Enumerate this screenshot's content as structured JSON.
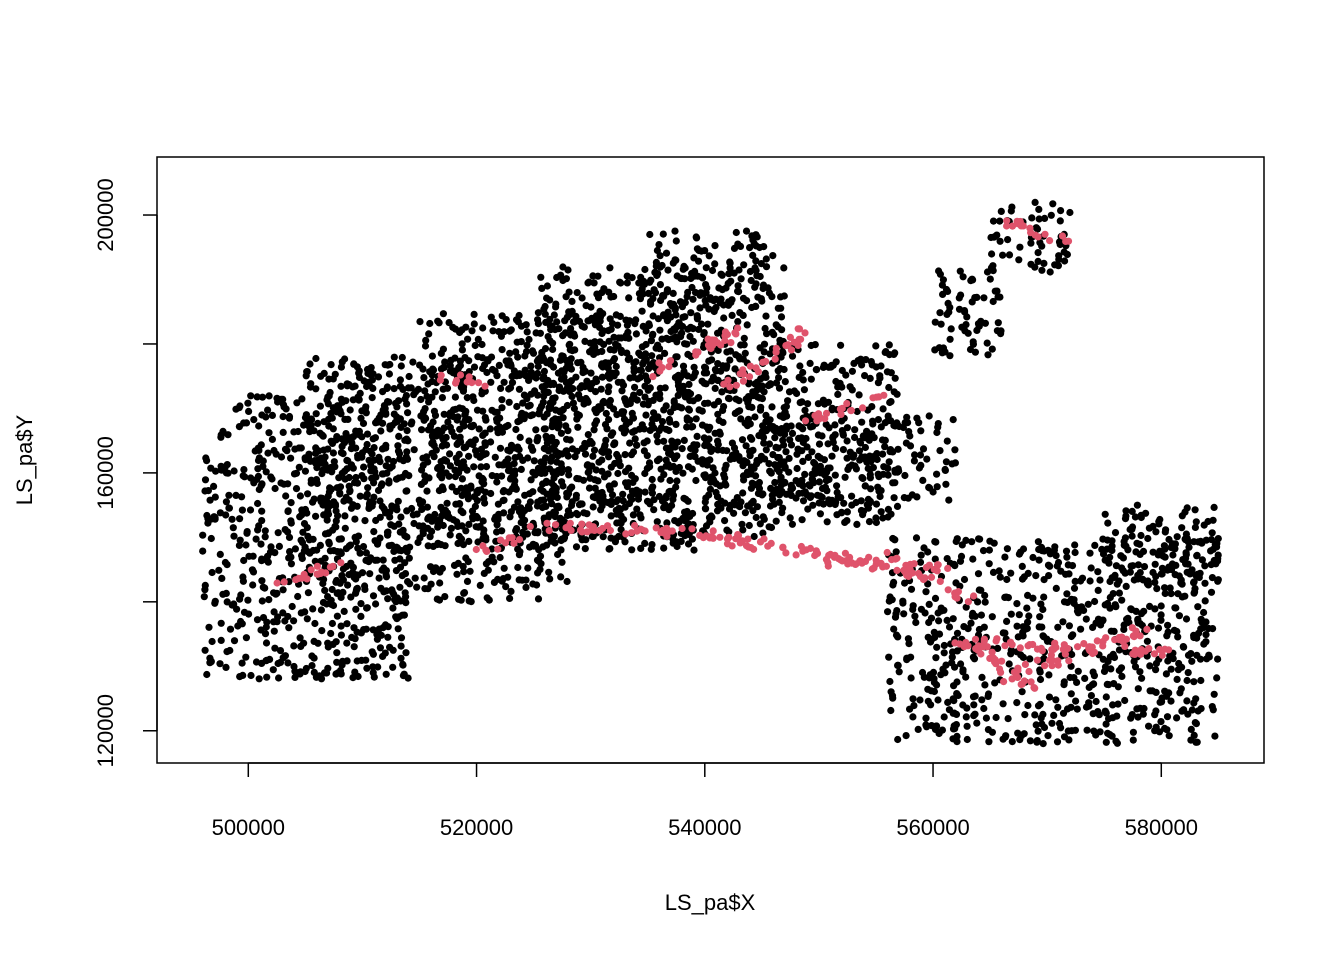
{
  "chart_data": {
    "type": "scatter",
    "title": "",
    "xlabel": "LS_pa$X",
    "ylabel": "LS_pa$Y",
    "xlim": [
      492000,
      589000
    ],
    "ylim": [
      115000,
      209000
    ],
    "x_ticks": [
      500000,
      520000,
      540000,
      560000,
      580000
    ],
    "x_tick_labels": [
      "500000",
      "520000",
      "540000",
      "560000",
      "580000"
    ],
    "y_ticks": [
      120000,
      140000,
      160000,
      180000,
      200000
    ],
    "y_tick_labels": [
      "120000",
      "",
      "160000",
      "",
      "200000"
    ],
    "grid": false,
    "legend": "none",
    "colors": {
      "absence": "#000000",
      "presence": "#DF536B"
    },
    "series": [
      {
        "color": "#000000",
        "regions": [
          {
            "x": [
              496000,
              514000
            ],
            "y": [
              128000,
              172000
            ]
          },
          {
            "x": [
              505000,
              528000
            ],
            "y": [
              140000,
              178000
            ]
          },
          {
            "x": [
              515000,
              540000
            ],
            "y": [
              148000,
              185000
            ]
          },
          {
            "x": [
              525000,
              547000
            ],
            "y": [
              150000,
              192000
            ]
          },
          {
            "x": [
              535000,
              546000
            ],
            "y": [
              185000,
              198000
            ]
          },
          {
            "x": [
              540000,
              557000
            ],
            "y": [
              152000,
              180000
            ]
          },
          {
            "x": [
              546000,
              562000
            ],
            "y": [
              155000,
              169000
            ]
          },
          {
            "x": [
              560000,
              566000
            ],
            "y": [
              178000,
              192000
            ]
          },
          {
            "x": [
              565000,
              572000
            ],
            "y": [
              191000,
              202000
            ]
          },
          {
            "x": [
              556000,
              585000
            ],
            "y": [
              118000,
              150000
            ]
          },
          {
            "x": [
              575000,
              585000
            ],
            "y": [
              142000,
              155000
            ]
          }
        ]
      },
      {
        "color": "#DF536B",
        "segments": [
          {
            "x": [
              517000,
              521000
            ],
            "y": [
              175000,
              174000
            ]
          },
          {
            "x": [
              520000,
              524000
            ],
            "y": [
              148000,
              150000
            ]
          },
          {
            "x": [
              524000,
              545000
            ],
            "y": [
              152000,
              150000
            ]
          },
          {
            "x": [
              540000,
              555000
            ],
            "y": [
              150000,
              146000
            ]
          },
          {
            "x": [
              550000,
              562000
            ],
            "y": [
              146000,
              145000
            ]
          },
          {
            "x": [
              556000,
              563000
            ],
            "y": [
              147000,
              140000
            ]
          },
          {
            "x": [
              563000,
              569000
            ],
            "y": [
              134000,
              126000
            ]
          },
          {
            "x": [
              562000,
              582000
            ],
            "y": [
              134000,
              132000
            ]
          },
          {
            "x": [
              566000,
              579000
            ],
            "y": [
              128000,
              136000
            ]
          },
          {
            "x": [
              542000,
              549000
            ],
            "y": [
              173000,
              182000
            ]
          },
          {
            "x": [
              535000,
              543000
            ],
            "y": [
              175000,
              182000
            ]
          },
          {
            "x": [
              566000,
              572000
            ],
            "y": [
              199000,
              196000
            ]
          },
          {
            "x": [
              503000,
              509000
            ],
            "y": [
              143000,
              146000
            ]
          },
          {
            "x": [
              549000,
              556000
            ],
            "y": [
              168000,
              172000
            ]
          }
        ]
      }
    ]
  }
}
